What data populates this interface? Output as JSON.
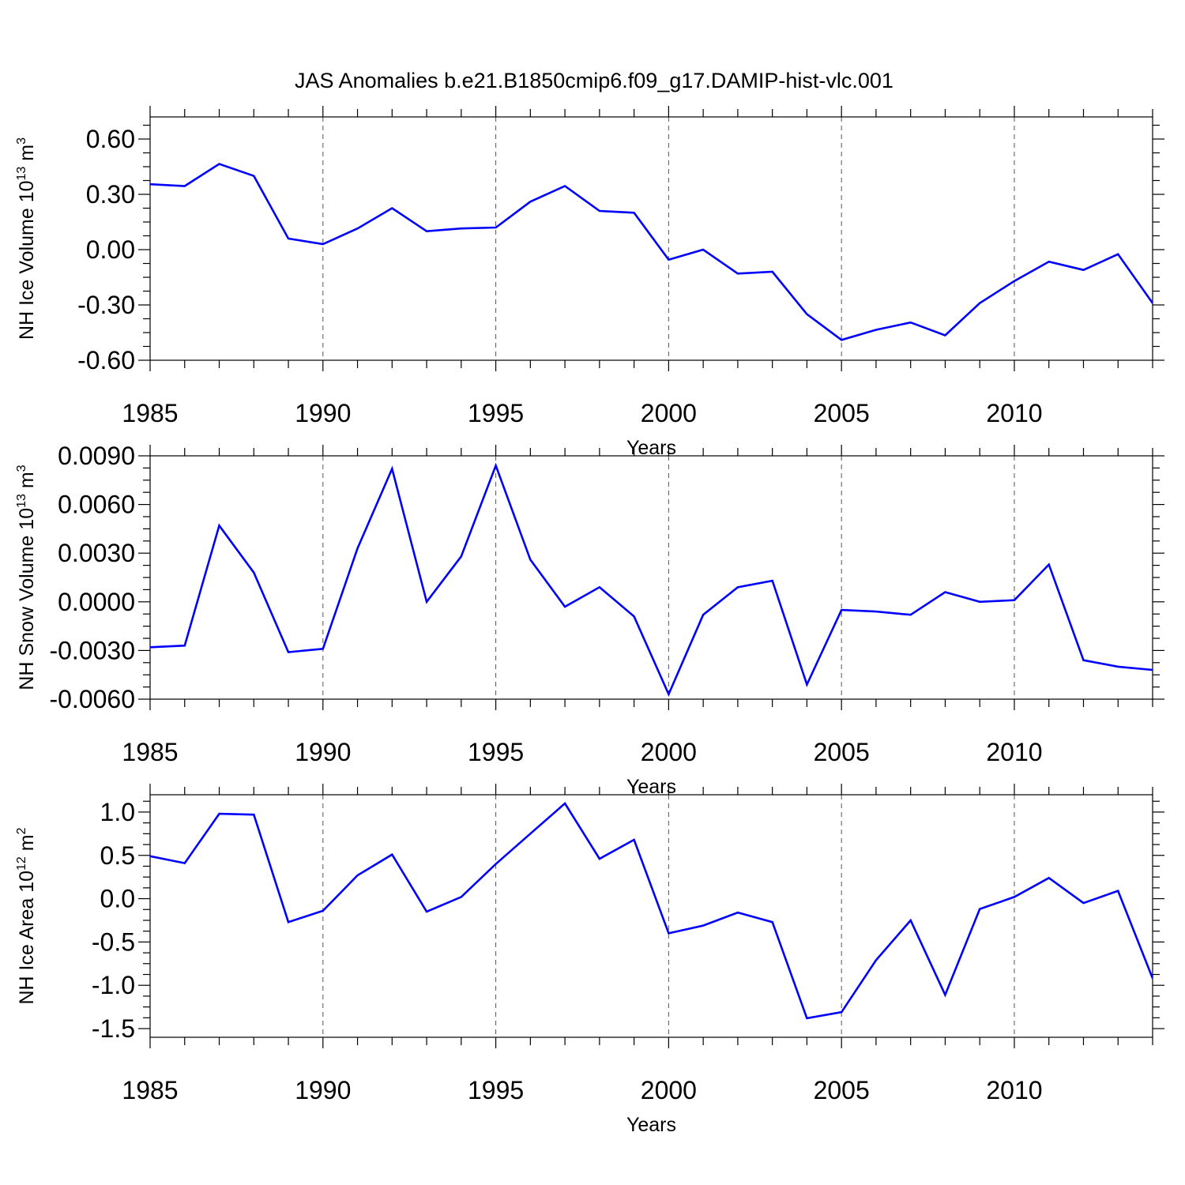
{
  "title": "JAS Anomalies b.e21.B1850cmip6.f09_g17.DAMIP-hist-vlc.001",
  "line_color": "#0000ff",
  "chart_data": [
    {
      "type": "line",
      "ylabel": "NH Ice Volume 10",
      "ylabel_sup": "13",
      "ylabel_unit": " m",
      "ylabel_unit_sup": "3",
      "xlabel": "Years",
      "xlim": [
        1985,
        2014
      ],
      "ylim": [
        -0.6,
        0.72
      ],
      "yticks": [
        -0.6,
        -0.3,
        0.0,
        0.3,
        0.6
      ],
      "ytick_labels": [
        "-0.60",
        "-0.30",
        "0.00",
        "0.30",
        "0.60"
      ],
      "yminor_step": 0.075,
      "xticks": [
        1985,
        1990,
        1995,
        2000,
        2005,
        2010
      ],
      "xtick_labels": [
        "1985",
        "1990",
        "1995",
        "2000",
        "2005",
        "2010"
      ],
      "grid_x": [
        1990,
        1995,
        2000,
        2005,
        2010
      ],
      "x": [
        1985,
        1986,
        1987,
        1988,
        1989,
        1990,
        1991,
        1992,
        1993,
        1994,
        1995,
        1996,
        1997,
        1998,
        1999,
        2000,
        2001,
        2002,
        2003,
        2004,
        2005,
        2006,
        2007,
        2008,
        2009,
        2010,
        2011,
        2012,
        2013,
        2014
      ],
      "values": [
        0.355,
        0.345,
        0.465,
        0.4,
        0.06,
        0.03,
        0.115,
        0.225,
        0.1,
        0.115,
        0.12,
        0.26,
        0.345,
        0.21,
        0.2,
        -0.055,
        0.0,
        -0.13,
        -0.12,
        -0.35,
        -0.49,
        -0.435,
        -0.395,
        -0.465,
        -0.29,
        -0.17,
        -0.065,
        -0.11,
        -0.025,
        -0.29
      ]
    },
    {
      "type": "line",
      "ylabel": "NH Snow Volume 10",
      "ylabel_sup": "13",
      "ylabel_unit": " m",
      "ylabel_unit_sup": "3",
      "xlabel": "Years",
      "xlim": [
        1985,
        2014
      ],
      "ylim": [
        -0.006,
        0.009
      ],
      "yticks": [
        -0.006,
        -0.003,
        0.0,
        0.003,
        0.006,
        0.009
      ],
      "ytick_labels": [
        "-0.0060",
        "-0.0030",
        "0.0000",
        "0.0030",
        "0.0060",
        "0.0090"
      ],
      "yminor_step": 0.00075,
      "xticks": [
        1985,
        1990,
        1995,
        2000,
        2005,
        2010
      ],
      "xtick_labels": [
        "1985",
        "1990",
        "1995",
        "2000",
        "2005",
        "2010"
      ],
      "grid_x": [
        1990,
        1995,
        2000,
        2005,
        2010
      ],
      "x": [
        1985,
        1986,
        1987,
        1988,
        1989,
        1990,
        1991,
        1992,
        1993,
        1994,
        1995,
        1996,
        1997,
        1998,
        1999,
        2000,
        2001,
        2002,
        2003,
        2004,
        2005,
        2006,
        2007,
        2008,
        2009,
        2010,
        2011,
        2012,
        2013,
        2014
      ],
      "values": [
        -0.0028,
        -0.0027,
        0.0047,
        0.0018,
        -0.0031,
        -0.0029,
        0.0033,
        0.0082,
        0.0,
        0.0028,
        0.0084,
        0.0026,
        -0.0003,
        0.0009,
        -0.0009,
        -0.0057,
        -0.0008,
        0.0009,
        0.0013,
        -0.0051,
        -0.0005,
        -0.0006,
        -0.0008,
        0.0006,
        0.0,
        0.0001,
        0.0023,
        -0.0036,
        -0.004,
        -0.0042
      ]
    },
    {
      "type": "line",
      "ylabel": "NH Ice Area 10",
      "ylabel_sup": "12",
      "ylabel_unit": " m",
      "ylabel_unit_sup": "2",
      "xlabel": "Years",
      "xlim": [
        1985,
        2014
      ],
      "ylim": [
        -1.6,
        1.2
      ],
      "yticks": [
        -1.5,
        -1.0,
        -0.5,
        0.0,
        0.5,
        1.0
      ],
      "ytick_labels": [
        "-1.5",
        "-1.0",
        "-0.5",
        "0.0",
        "0.5",
        "1.0"
      ],
      "yminor_step": 0.125,
      "xticks": [
        1985,
        1990,
        1995,
        2000,
        2005,
        2010
      ],
      "xtick_labels": [
        "1985",
        "1990",
        "1995",
        "2000",
        "2005",
        "2010"
      ],
      "grid_x": [
        1990,
        1995,
        2000,
        2005,
        2010
      ],
      "x": [
        1985,
        1986,
        1987,
        1988,
        1989,
        1990,
        1991,
        1992,
        1993,
        1994,
        1995,
        1996,
        1997,
        1998,
        1999,
        2000,
        2001,
        2002,
        2003,
        2004,
        2005,
        2006,
        2007,
        2008,
        2009,
        2010,
        2011,
        2012,
        2013,
        2014
      ],
      "values": [
        0.49,
        0.41,
        0.98,
        0.97,
        -0.27,
        -0.14,
        0.27,
        0.51,
        -0.15,
        0.02,
        0.4,
        0.75,
        1.1,
        0.46,
        0.68,
        -0.4,
        -0.31,
        -0.16,
        -0.27,
        -1.38,
        -1.31,
        -0.71,
        -0.25,
        -1.11,
        -0.12,
        0.02,
        0.24,
        -0.05,
        0.09,
        -0.92
      ]
    }
  ]
}
